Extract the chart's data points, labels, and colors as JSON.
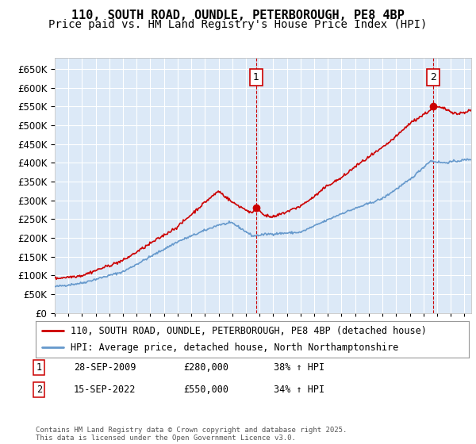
{
  "title": "110, SOUTH ROAD, OUNDLE, PETERBOROUGH, PE8 4BP",
  "subtitle": "Price paid vs. HM Land Registry's House Price Index (HPI)",
  "ylim": [
    0,
    680000
  ],
  "yticks": [
    0,
    50000,
    100000,
    150000,
    200000,
    250000,
    300000,
    350000,
    400000,
    450000,
    500000,
    550000,
    600000,
    650000
  ],
  "xlim_start": 1995.0,
  "xlim_end": 2025.5,
  "background_color": "#dce9f7",
  "grid_color": "#ffffff",
  "red_line_color": "#cc0000",
  "blue_line_color": "#6699cc",
  "sale1_x": 2009.75,
  "sale1_y": 280000,
  "sale2_x": 2022.71,
  "sale2_y": 550000,
  "annotation1_label": "1",
  "annotation2_label": "2",
  "legend_line1": "110, SOUTH ROAD, OUNDLE, PETERBOROUGH, PE8 4BP (detached house)",
  "legend_line2": "HPI: Average price, detached house, North Northamptonshire",
  "footer": "Contains HM Land Registry data © Crown copyright and database right 2025.\nThis data is licensed under the Open Government Licence v3.0.",
  "title_fontsize": 11,
  "subtitle_fontsize": 10,
  "tick_fontsize": 8.5,
  "legend_fontsize": 8.5,
  "hpi_control_years": [
    1995.0,
    1997.0,
    2000.0,
    2004.0,
    2007.0,
    2008.0,
    2009.5,
    2010.5,
    2013.0,
    2016.0,
    2019.0,
    2021.0,
    2022.5,
    2023.5,
    2025.5
  ],
  "hpi_control_vals": [
    70000,
    80000,
    110000,
    190000,
    235000,
    240000,
    205000,
    210000,
    215000,
    265000,
    305000,
    355000,
    405000,
    400000,
    410000
  ],
  "prop_control_years": [
    1995.0,
    1997.0,
    2000.0,
    2004.0,
    2006.0,
    2007.0,
    2008.0,
    2009.5,
    2009.75,
    2010.5,
    2011.0,
    2012.0,
    2013.0,
    2014.0,
    2015.0,
    2016.0,
    2017.0,
    2018.0,
    2019.0,
    2020.0,
    2021.0,
    2022.5,
    2022.71,
    2023.5,
    2024.5,
    2025.5
  ],
  "prop_control_vals": [
    92000,
    100000,
    140000,
    230000,
    295000,
    325000,
    295000,
    265000,
    280000,
    258000,
    255000,
    270000,
    285000,
    310000,
    340000,
    360000,
    390000,
    415000,
    440000,
    470000,
    505000,
    540000,
    550000,
    545000,
    530000,
    540000
  ]
}
